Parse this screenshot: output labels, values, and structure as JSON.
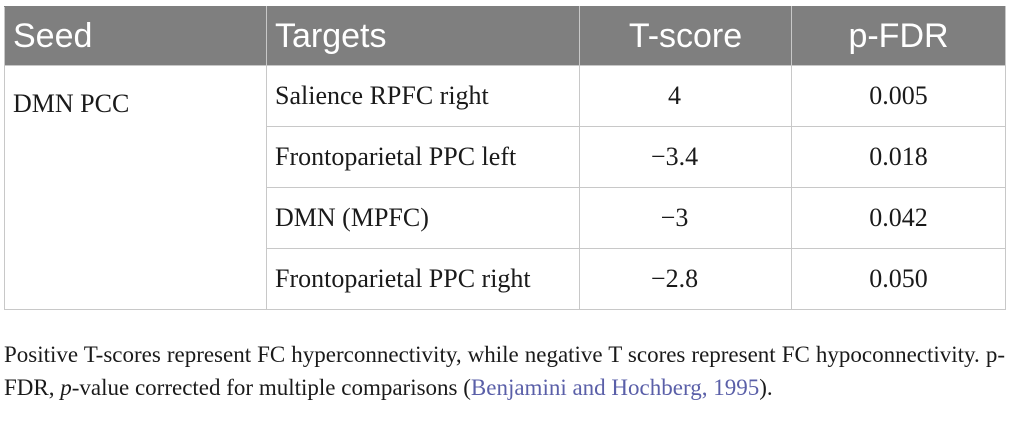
{
  "table": {
    "headers": [
      "Seed",
      "Targets",
      "T-score",
      "p-FDR"
    ],
    "seed": "DMN PCC",
    "rows": [
      {
        "target": "Salience RPFC right",
        "tscore": "4",
        "pfdr": "0.005"
      },
      {
        "target": "Frontoparietal PPC left",
        "tscore": "−3.4",
        "pfdr": "0.018"
      },
      {
        "target": "DMN (MPFC)",
        "tscore": "−3",
        "pfdr": "0.042"
      },
      {
        "target": "Frontoparietal PPC right",
        "tscore": "−2.8",
        "pfdr": "0.050"
      }
    ]
  },
  "footnote": {
    "part1": "Positive T-scores represent FC hyperconnectivity, while negative T scores represent FC hypoconnectivity. p-FDR, ",
    "p_italic": "p",
    "part2": "-value corrected for multiple comparisons (",
    "citation": "Benjamini and Hochberg, 1995",
    "part3": ")."
  },
  "colors": {
    "header_bg": "#7f7f7f",
    "header_text": "#ffffff",
    "grid": "#c8c8c8",
    "citation_link": "#5a5fa8"
  }
}
